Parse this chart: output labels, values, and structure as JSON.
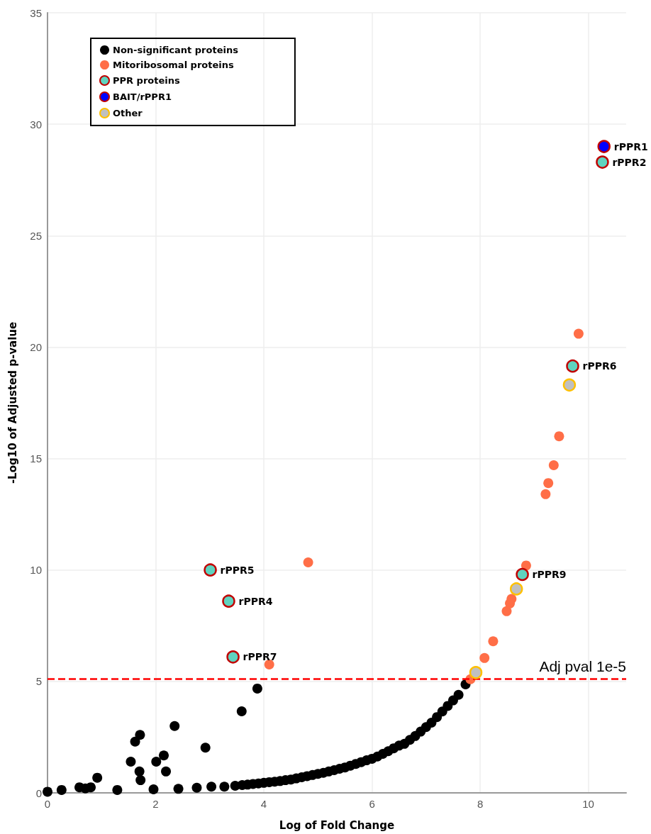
{
  "chart_data": {
    "type": "scatter",
    "xlabel": "Log of Fold Change",
    "ylabel": "-Log10 of Adjusted p-value",
    "xlim": [
      0,
      10.7
    ],
    "xticks": [
      0,
      2,
      4,
      6,
      8,
      10
    ],
    "ylim": [
      0,
      35
    ],
    "yticks": [
      0,
      5,
      10,
      15,
      20,
      25,
      30,
      35
    ],
    "grid": true,
    "legend": "top left",
    "marker": "circle",
    "series": [
      {
        "name": "Non-significant proteins",
        "color": "#000000",
        "x": [
          0,
          0.26,
          0.59,
          0.7,
          0.8,
          0.92,
          1.29,
          1.54,
          1.62,
          1.71,
          1.7,
          1.72,
          1.96,
          2.01,
          2.15,
          2.19,
          2.35,
          2.42,
          2.76,
          2.92,
          3.03,
          3.27,
          3.47,
          3.59,
          3.88,
          3.6,
          3.7,
          3.8,
          3.9,
          4.0,
          4.1,
          4.2,
          4.3,
          4.4,
          4.5,
          4.6,
          4.7,
          4.8,
          4.9,
          5.0,
          5.1,
          5.2,
          5.3,
          5.4,
          5.5,
          5.6,
          5.7,
          5.8,
          5.9,
          6.0,
          6.1,
          6.2,
          6.3,
          6.4,
          6.5,
          6.6,
          6.7,
          6.8,
          6.9,
          7.0,
          7.1,
          7.2,
          7.3,
          7.4,
          7.5,
          7.6,
          7.73
        ],
        "values": [
          0.05,
          0.13,
          0.25,
          0.2,
          0.25,
          0.68,
          0.13,
          1.4,
          2.3,
          2.6,
          0.96,
          0.57,
          0.16,
          1.4,
          1.68,
          0.96,
          3.0,
          0.18,
          0.23,
          2.03,
          0.28,
          0.28,
          0.32,
          3.66,
          4.68,
          0.35,
          0.37,
          0.4,
          0.42,
          0.45,
          0.48,
          0.5,
          0.53,
          0.57,
          0.6,
          0.65,
          0.7,
          0.75,
          0.8,
          0.85,
          0.9,
          0.96,
          1.02,
          1.08,
          1.14,
          1.22,
          1.3,
          1.38,
          1.46,
          1.53,
          1.63,
          1.75,
          1.87,
          2.0,
          2.12,
          2.2,
          2.38,
          2.55,
          2.75,
          2.95,
          3.15,
          3.4,
          3.65,
          3.9,
          4.15,
          4.4,
          4.87
        ]
      },
      {
        "name": "Mitoribosomal proteins",
        "color": "#ff6e47",
        "x": [
          4.82,
          4.1,
          9.82,
          9.46,
          9.36,
          9.26,
          9.21,
          8.85,
          8.49,
          8.55,
          8.58,
          8.24,
          8.08,
          7.82
        ],
        "values": [
          10.34,
          5.76,
          20.6,
          16.0,
          14.7,
          13.9,
          13.4,
          10.2,
          8.15,
          8.5,
          8.7,
          6.8,
          6.05,
          5.1
        ]
      },
      {
        "name": "PPR proteins",
        "color": "#5fd3bf",
        "x": [
          10.26,
          9.71,
          8.78,
          3.01,
          3.35,
          3.43
        ],
        "values": [
          28.3,
          19.15,
          9.8,
          10.0,
          8.6,
          6.1
        ]
      },
      {
        "name": "BAIT/rPPR1",
        "color": "#0000ff",
        "x": [
          10.29
        ],
        "values": [
          29.0
        ]
      },
      {
        "name": "Other",
        "color": "#c0c0c0",
        "x": [
          9.65,
          8.67,
          7.92
        ],
        "values": [
          18.3,
          9.15,
          5.4
        ]
      }
    ],
    "ref_lines": [
      {
        "axis": "y",
        "value": 5.1,
        "label": "Adj pval 1e-5",
        "color": "#ff0000",
        "line_style": "dashed"
      }
    ],
    "annotations": [
      {
        "text": "rPPR1",
        "x": 10.29,
        "y": 29.0
      },
      {
        "text": "rPPR2",
        "x": 10.26,
        "y": 28.3
      },
      {
        "text": "rPPR6",
        "x": 9.71,
        "y": 19.15
      },
      {
        "text": "rPPR9",
        "x": 8.78,
        "y": 9.8
      },
      {
        "text": "rPPR5",
        "x": 3.01,
        "y": 10.0
      },
      {
        "text": "rPPR4",
        "x": 3.35,
        "y": 8.6
      },
      {
        "text": "rPPR7",
        "x": 3.43,
        "y": 6.1
      }
    ]
  }
}
